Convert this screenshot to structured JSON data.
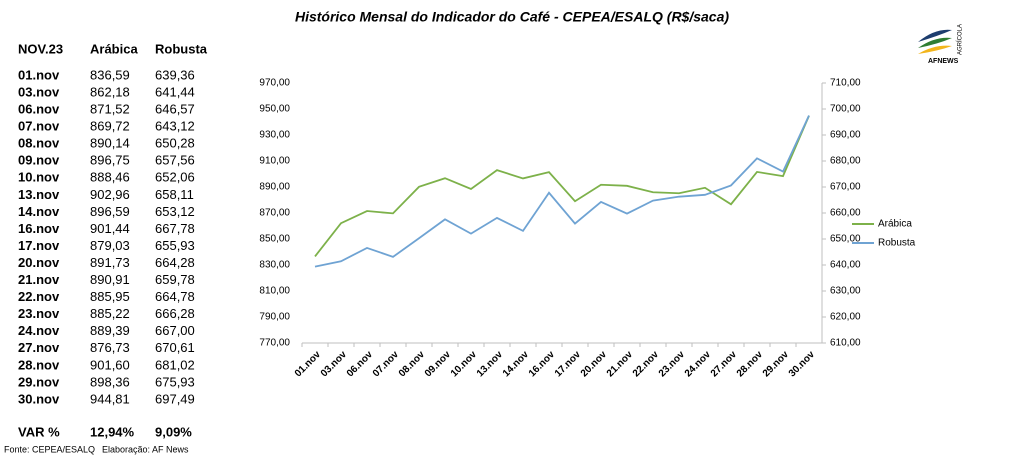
{
  "chart_data": {
    "type": "line",
    "title": "Histórico Mensal do Indicador do Café - CEPEA/ESALQ (R$/saca)",
    "categories": [
      "01.nov",
      "03.nov",
      "06.nov",
      "07.nov",
      "08.nov",
      "09.nov",
      "10.nov",
      "13.nov",
      "14.nov",
      "16.nov",
      "17.nov",
      "20.nov",
      "21.nov",
      "22.nov",
      "23.nov",
      "24.nov",
      "27.nov",
      "28.nov",
      "29.nov",
      "30.nov"
    ],
    "series": [
      {
        "name": "Arábica",
        "color": "#7db14a",
        "values": [
          836.59,
          862.18,
          871.52,
          869.72,
          890.14,
          896.75,
          888.46,
          902.96,
          896.59,
          901.44,
          879.03,
          891.73,
          890.91,
          885.95,
          885.22,
          889.39,
          876.73,
          901.6,
          898.36,
          944.81
        ],
        "value_labels": [
          "836,59",
          "862,18",
          "871,52",
          "869,72",
          "890,14",
          "896,75",
          "888,46",
          "902,96",
          "896,59",
          "901,44",
          "879,03",
          "891,73",
          "890,91",
          "885,95",
          "885,22",
          "889,39",
          "876,73",
          "901,60",
          "898,36",
          "944,81"
        ]
      },
      {
        "name": "Robusta",
        "color": "#6fa3d3",
        "axis": "y2",
        "values": [
          639.36,
          641.44,
          646.57,
          643.12,
          650.28,
          657.56,
          652.06,
          658.11,
          653.12,
          667.78,
          655.93,
          664.28,
          659.78,
          664.78,
          666.28,
          667.0,
          670.61,
          681.02,
          675.93,
          697.49
        ],
        "value_labels": [
          "639,36",
          "641,44",
          "646,57",
          "643,12",
          "650,28",
          "657,56",
          "652,06",
          "658,11",
          "653,12",
          "667,78",
          "655,93",
          "664,28",
          "659,78",
          "664,78",
          "666,28",
          "667,00",
          "670,61",
          "681,02",
          "675,93",
          "697,49"
        ]
      }
    ],
    "ylim": [
      770,
      970
    ],
    "yticks": [
      {
        "value": 770,
        "label": "770,00"
      },
      {
        "value": 790,
        "label": "790,00"
      },
      {
        "value": 810,
        "label": "810,00"
      },
      {
        "value": 830,
        "label": "830,00"
      },
      {
        "value": 850,
        "label": "850,00"
      },
      {
        "value": 870,
        "label": "870,00"
      },
      {
        "value": 890,
        "label": "890,00"
      },
      {
        "value": 910,
        "label": "910,00"
      },
      {
        "value": 930,
        "label": "930,00"
      },
      {
        "value": 950,
        "label": "950,00"
      },
      {
        "value": 970,
        "label": "970,00"
      }
    ],
    "y2lim": [
      610,
      710
    ],
    "y2ticks": [
      {
        "value": 610,
        "label": "610,00"
      },
      {
        "value": 620,
        "label": "620,00"
      },
      {
        "value": 630,
        "label": "630,00"
      },
      {
        "value": 640,
        "label": "640,00"
      },
      {
        "value": 650,
        "label": "650,00"
      },
      {
        "value": 660,
        "label": "660,00"
      },
      {
        "value": 670,
        "label": "670,00"
      },
      {
        "value": 680,
        "label": "680,00"
      },
      {
        "value": 690,
        "label": "690,00"
      },
      {
        "value": 700,
        "label": "700,00"
      },
      {
        "value": 710,
        "label": "710,00"
      }
    ],
    "legend": "right",
    "grid": false
  },
  "table_header": "NOV.23",
  "change": {
    "label": "VAR %",
    "values": [
      "12,94%",
      "9,09%"
    ]
  },
  "source": "Fonte: CEPEA/ESALQ",
  "credit": "Elaboração: AF News",
  "logo": {
    "name": "AFNEWS",
    "tag": "AGRÍCOLA"
  }
}
